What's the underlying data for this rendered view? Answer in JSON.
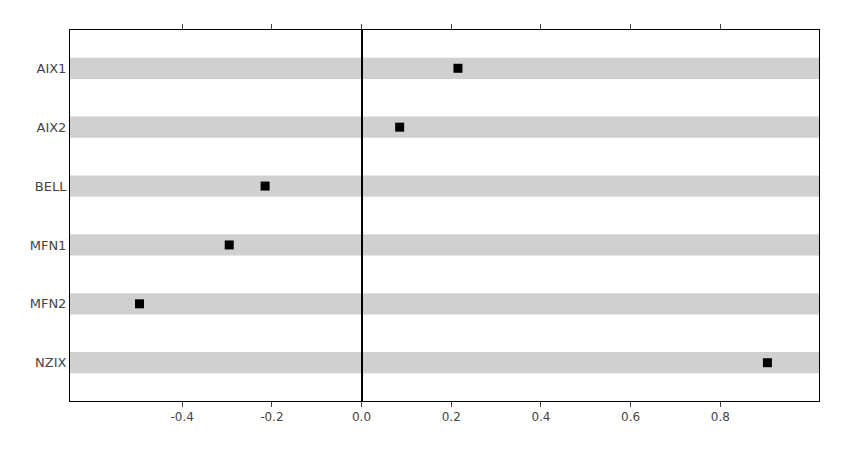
{
  "chart_data": {
    "type": "scatter",
    "categories": [
      "NZIX",
      "MFN2",
      "MFN1",
      "BELL",
      "AIX2",
      "AIX1"
    ],
    "values": [
      0.905,
      -0.495,
      -0.295,
      -0.215,
      0.085,
      0.215
    ],
    "xlim": [
      -0.65,
      1.02
    ],
    "xticks": [
      -0.4,
      -0.2,
      {
        "value": 0.0,
        "label": "0.0"
      },
      0.2,
      0.4,
      0.6,
      0.8
    ],
    "marker": "square",
    "color": "black",
    "grid": false
  }
}
